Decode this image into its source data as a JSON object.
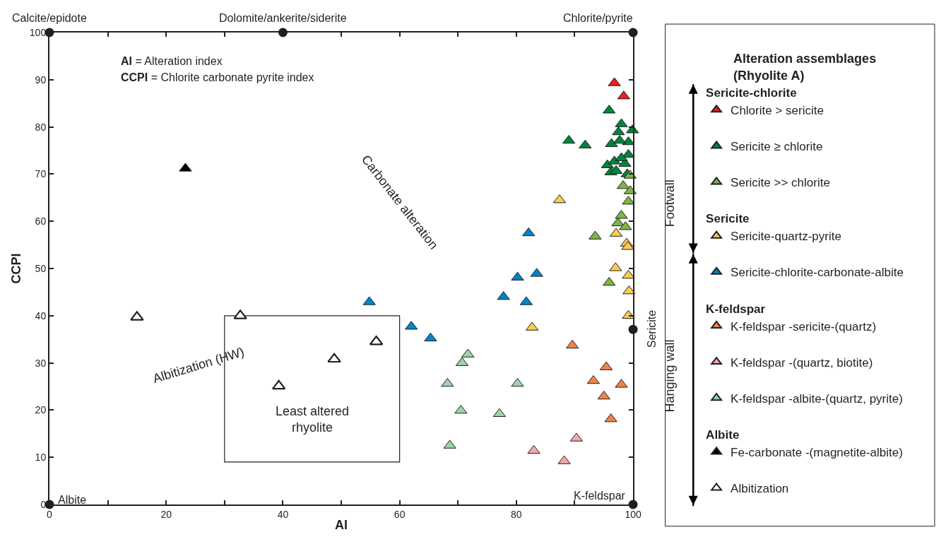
{
  "chart_data": {
    "type": "scatter",
    "xlabel": "AI",
    "ylabel": "CCPI",
    "legend_title": "Alteration assemblages\n(Rhyolite A)",
    "xlim": [
      0,
      100
    ],
    "ylim": [
      0,
      100
    ],
    "xticks": [
      0,
      {
        "value": 10,
        "label": null
      },
      20,
      {
        "value": 30,
        "label": null
      },
      40,
      {
        "value": 50,
        "label": null
      },
      60,
      {
        "value": 70,
        "label": null
      },
      80,
      {
        "value": 90,
        "label": null
      },
      100
    ],
    "yticks": [
      0,
      10,
      20,
      30,
      40,
      50,
      60,
      70,
      80,
      90,
      100
    ],
    "grid": false,
    "legend": "right",
    "marker": "triangle",
    "series": [
      {
        "name": "Chlorite > sericite",
        "color": "#ed1c24",
        "x": [
          96.8,
          98.4
        ],
        "values": [
          89.3,
          86.5
        ]
      },
      {
        "name": "Sericite ≥ chlorite",
        "color": "#00843d",
        "x": [
          95.9,
          89.0,
          91.8,
          98.0,
          97.5,
          99.9,
          96.3,
          99.2,
          97.7,
          99.2,
          95.6,
          96.8,
          98.6,
          96.2,
          97.1,
          98.0,
          99.0
        ],
        "values": [
          83.5,
          77.1,
          76.1,
          80.6,
          78.9,
          79.3,
          76.4,
          76.8,
          77.1,
          74.1,
          71.9,
          72.7,
          72.2,
          70.4,
          70.7,
          73.4,
          70.0
        ]
      },
      {
        "name": "Sericite >> chlorite",
        "color": "#7ab648",
        "x": [
          98.3,
          99.5,
          99.2,
          98.0,
          97.4,
          98.7,
          93.5,
          95.9,
          99.5
        ],
        "values": [
          67.5,
          66.4,
          64.2,
          61.2,
          59.6,
          58.8,
          56.8,
          47.0,
          69.7
        ]
      },
      {
        "name": "Sericite-quartz-pyrite",
        "color": "#fdcb4f",
        "x": [
          87.4,
          97.1,
          98.9,
          99.1,
          97.0,
          99.2,
          99.3,
          99.2,
          82.7
        ],
        "values": [
          64.5,
          57.4,
          55.3,
          54.6,
          50.1,
          48.5,
          45.2,
          40.0,
          37.5
        ]
      },
      {
        "name": "Sericite-chlorite-carbonate-albite",
        "color": "#0083c9",
        "x": [
          82.1,
          80.2,
          83.5,
          77.8,
          81.7,
          54.8,
          62.0,
          65.3
        ],
        "values": [
          57.5,
          48.1,
          48.9,
          44.0,
          42.9,
          42.9,
          37.7,
          35.2
        ]
      },
      {
        "name": "K-feldspar -sericite-(quartz)",
        "color": "#f1824b",
        "x": [
          89.6,
          95.4,
          93.2,
          98.0,
          95.0,
          96.2
        ],
        "values": [
          33.7,
          29.1,
          26.2,
          25.4,
          22.9,
          18.1
        ]
      },
      {
        "name": "K-feldspar -(quartz, biotite)",
        "color": "#f2a9a8",
        "x": [
          83.0,
          90.3,
          88.2
        ],
        "values": [
          11.4,
          14.0,
          9.2
        ]
      },
      {
        "name": "K-feldspar -albite-(quartz, pyrite)",
        "color": "#9ad4a8",
        "x": [
          71.7,
          70.7,
          68.2,
          80.2,
          70.5,
          77.1,
          68.6
        ],
        "values": [
          31.8,
          30.0,
          25.6,
          25.6,
          19.9,
          19.2,
          12.5
        ]
      },
      {
        "name": "Fe-carbonate -(magnetite-albite)",
        "color": "#000000",
        "x": [
          23.3
        ],
        "values": [
          71.2
        ]
      },
      {
        "name": "Albitization",
        "color": "#ffffff",
        "x": [
          15.0,
          32.7,
          48.8,
          39.3,
          56.0
        ],
        "values": [
          39.7,
          40.0,
          30.8,
          25.1,
          34.5
        ]
      },
      {
        "color": "#231f20",
        "marker": "circle",
        "x": [
          0,
          40,
          100,
          0,
          100,
          100
        ],
        "values": [
          100,
          100,
          100,
          0,
          0,
          37.1
        ]
      }
    ],
    "annotations": [
      "AI = Alteration index",
      "CCPI = Chlorite carbonate pyrite index",
      "Carbonate alteration",
      "Albitization (HW)",
      "Least altered\nrhyolite",
      "Sericite-chlorite",
      "Sericite",
      "K-feldspar",
      "Albite",
      "Footwall",
      "Hanging wall",
      {
        "text": "Calcite/epidote",
        "x": 0,
        "y": 100
      },
      {
        "text": "Dolomite/ankerite/siderite",
        "x": 40,
        "y": 100
      },
      {
        "text": "Chlorite/pyrite",
        "x": 100,
        "y": 100
      },
      {
        "text": "Albite",
        "x": 0,
        "y": 0
      },
      {
        "text": "K-feldspar",
        "x": 100,
        "y": 0
      },
      {
        "text": "Sericite",
        "x": 100,
        "y": 37.1
      }
    ]
  }
}
